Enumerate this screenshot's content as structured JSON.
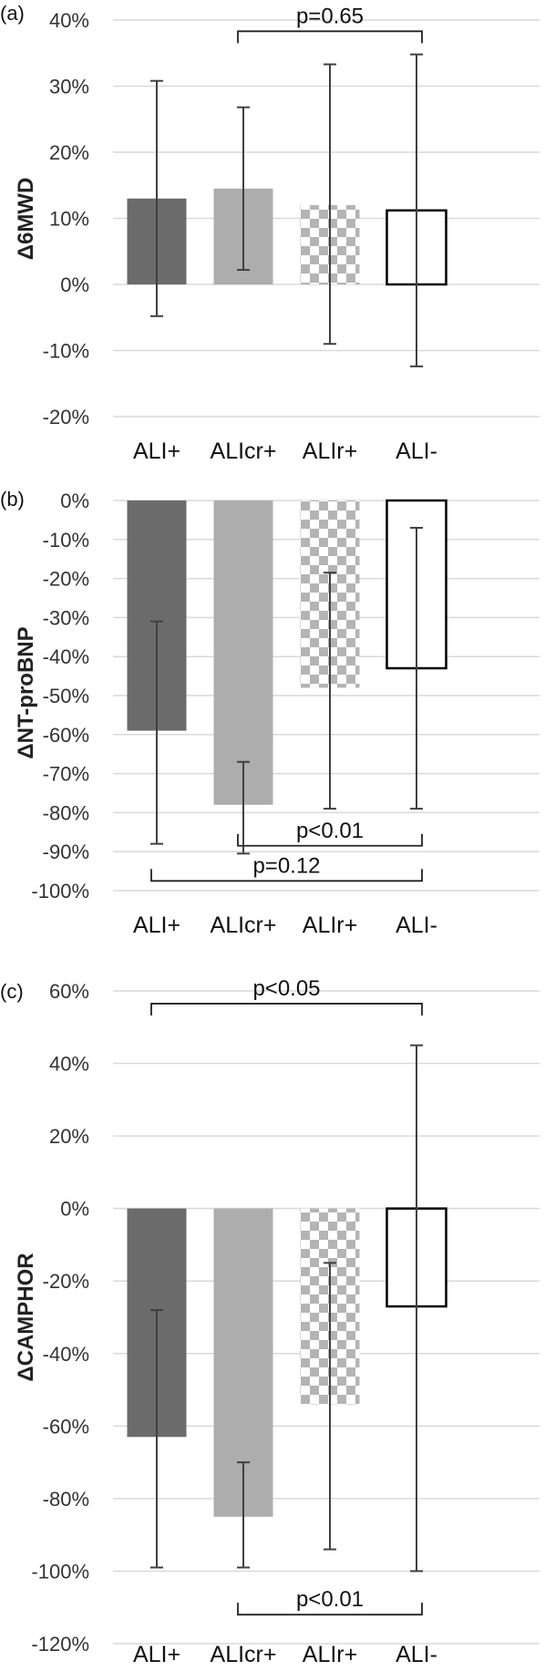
{
  "chart_data": [
    {
      "type": "bar",
      "panel_label": "(a)",
      "ylabel": "Δ6MWD",
      "categories": [
        "ALI+",
        "ALIcr+",
        "ALIr+",
        "ALI-"
      ],
      "values": [
        13,
        14.5,
        12,
        11.2
      ],
      "error_bars": [
        {
          "low": -4.8,
          "high": 30.8
        },
        {
          "low": 2.2,
          "high": 26.8
        },
        {
          "low": -9.0,
          "high": 33.3
        },
        {
          "low": -12.4,
          "high": 34.8
        }
      ],
      "y_ticks": [
        40,
        30,
        20,
        10,
        0,
        -10,
        -20
      ],
      "y_tick_labels": [
        "40%",
        "30%",
        "20%",
        "10%",
        "0%",
        "-10%",
        "-20%"
      ],
      "ylim": [
        -20,
        40
      ],
      "grid": true,
      "bar_styles": [
        "dark",
        "light",
        "checker",
        "outline"
      ],
      "significance": [
        {
          "from": 1,
          "to": 3,
          "label": "p=0.65",
          "y": 38.3,
          "position": "above"
        }
      ]
    },
    {
      "type": "bar",
      "panel_label": "(b)",
      "ylabel": "ΔNT-proBNP",
      "categories": [
        "ALI+",
        "ALIcr+",
        "ALIr+",
        "ALI-"
      ],
      "values": [
        -59,
        -78,
        -48,
        -43
      ],
      "error_bars": [
        {
          "low": -88,
          "high": -31
        },
        {
          "low": -90.5,
          "high": -67
        },
        {
          "low": -79,
          "high": -18.5
        },
        {
          "low": -79,
          "high": -7
        }
      ],
      "y_ticks": [
        0,
        -10,
        -20,
        -30,
        -40,
        -50,
        -60,
        -70,
        -80,
        -90,
        -100
      ],
      "y_tick_labels": [
        "0%",
        "-10%",
        "-20%",
        "-30%",
        "-40%",
        "-50%",
        "-60%",
        "-70%",
        "-80%",
        "-90%",
        "-100%"
      ],
      "ylim": [
        -100,
        0
      ],
      "grid": true,
      "bar_styles": [
        "dark",
        "light",
        "checker",
        "outline"
      ],
      "significance": [
        {
          "from": 1,
          "to": 3,
          "label": "p<0.01",
          "y": -88.5,
          "position": "below"
        },
        {
          "from": 0,
          "to": 3,
          "label": "p=0.12",
          "y": -97.5,
          "position": "below"
        }
      ]
    },
    {
      "type": "bar",
      "panel_label": "(c)",
      "ylabel": "ΔCAMPHOR",
      "categories": [
        "ALI+",
        "ALIcr+",
        "ALIr+",
        "ALI-"
      ],
      "values": [
        -63,
        -85,
        -54,
        -27
      ],
      "error_bars": [
        {
          "low": -99,
          "high": -28
        },
        {
          "low": -99,
          "high": -70
        },
        {
          "low": -94,
          "high": -15
        },
        {
          "low": -100,
          "high": 45
        }
      ],
      "y_ticks": [
        60,
        40,
        20,
        0,
        -20,
        -40,
        -60,
        -80,
        -100,
        -120
      ],
      "y_tick_labels": [
        "60%",
        "40%",
        "20%",
        "0%",
        "-20%",
        "-40%",
        "-60%",
        "-80%",
        "-100%",
        "-120%"
      ],
      "ylim": [
        -120,
        60
      ],
      "grid": true,
      "bar_styles": [
        "dark",
        "light",
        "checker",
        "outline"
      ],
      "significance": [
        {
          "from": 0,
          "to": 3,
          "label": "p<0.05",
          "y": 56.5,
          "position": "above"
        },
        {
          "from": 1,
          "to": 3,
          "label": "p<0.01",
          "y": -112,
          "position": "below"
        }
      ]
    }
  ],
  "colors": {
    "dark": "#6b6b6b",
    "light": "#adadad",
    "checker": "#b4b4b4",
    "outline": "#000000",
    "grid": "#d9d9d9",
    "error": "#404040"
  }
}
